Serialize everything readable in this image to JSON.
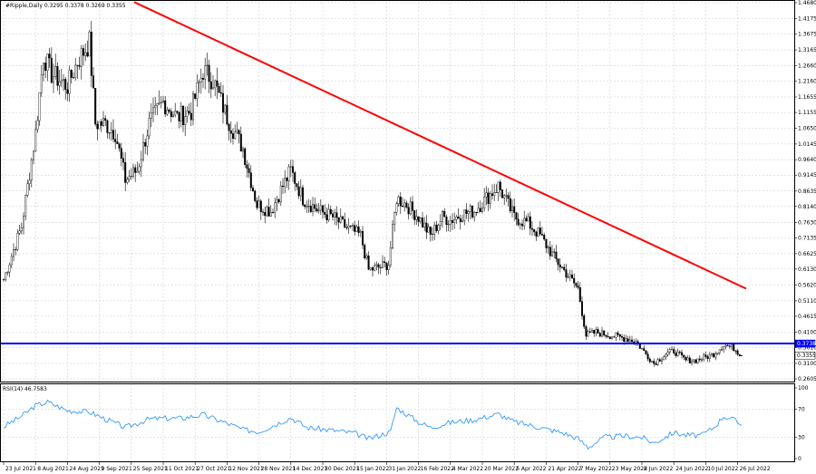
{
  "chart_data": [
    {
      "type": "candlestick",
      "title": "#Ripple,Daily",
      "ohlc_header": "0.3295 0.3378 0.3269 0.3355",
      "ylim": [
        0.2605,
        1.468
      ],
      "y_ticks": [
        "1.4680",
        "1.4175",
        "1.3675",
        "1.3165",
        "1.2660",
        "1.2160",
        "1.1655",
        "1.1155",
        "1.0650",
        "1.0145",
        "0.9640",
        "0.9145",
        "0.8635",
        "0.8140",
        "0.7630",
        "0.7135",
        "0.6625",
        "0.6130",
        "0.5620",
        "0.5110",
        "0.4615",
        "0.4100",
        "0.3610",
        "0.3100",
        "0.2605"
      ],
      "price_labels": [
        {
          "text": "0.3738",
          "value": 0.3738,
          "color": "#0000ff"
        },
        {
          "text": "0.3355",
          "value": 0.3355,
          "color": "#ffffff"
        }
      ],
      "x_tick_labels": [
        "23 Jul 2021",
        "8 Aug 2021",
        "24 Aug 2021",
        "9 Sep 2021",
        "25 Sep 2021",
        "11 Oct 2021",
        "27 Oct 2021",
        "12 Nov 2021",
        "28 Nov 2021",
        "14 Dec 2021",
        "30 Dec 2021",
        "15 Jan 2022",
        "31 Jan 2022",
        "16 Feb 2022",
        "4 Mar 2022",
        "20 Mar 2022",
        "5 Apr 2022",
        "21 Apr 2022",
        "7 May 2022",
        "23 May 2022",
        "8 Jun 2022",
        "24 Jun 2022",
        "10 Jul 2022",
        "26 Jul 2022"
      ],
      "support_line": {
        "value": 0.3738,
        "color": "#0000ff"
      },
      "trendline": {
        "from": {
          "date": "Aug 2021",
          "value": 1.47
        },
        "to": {
          "date": "Aug 2022",
          "value": 0.55
        },
        "color": "#ff0000"
      },
      "closes_anchor_points": [
        {
          "date": "23 Jul 2021",
          "close": 0.58
        },
        {
          "date": "1 Aug 2021",
          "close": 0.75
        },
        {
          "date": "8 Aug 2021",
          "close": 1.05
        },
        {
          "date": "12 Aug 2021",
          "close": 1.3
        },
        {
          "date": "16 Aug 2021",
          "close": 1.24
        },
        {
          "date": "24 Aug 2021",
          "close": 1.2
        },
        {
          "date": "29 Aug 2021",
          "close": 1.28
        },
        {
          "date": "4 Sep 2021",
          "close": 1.34
        },
        {
          "date": "7 Sep 2021",
          "close": 1.08
        },
        {
          "date": "12 Sep 2021",
          "close": 1.08
        },
        {
          "date": "17 Sep 2021",
          "close": 1.05
        },
        {
          "date": "22 Sep 2021",
          "close": 0.9
        },
        {
          "date": "28 Sep 2021",
          "close": 0.93
        },
        {
          "date": "4 Oct 2021",
          "close": 1.08
        },
        {
          "date": "11 Oct 2021",
          "close": 1.15
        },
        {
          "date": "18 Oct 2021",
          "close": 1.1
        },
        {
          "date": "25 Oct 2021",
          "close": 1.12
        },
        {
          "date": "31 Oct 2021",
          "close": 1.25
        },
        {
          "date": "5 Nov 2021",
          "close": 1.22
        },
        {
          "date": "12 Nov 2021",
          "close": 1.1
        },
        {
          "date": "20 Nov 2021",
          "close": 1.0
        },
        {
          "date": "27 Nov 2021",
          "close": 0.82
        },
        {
          "date": "4 Dec 2021",
          "close": 0.8
        },
        {
          "date": "10 Dec 2021",
          "close": 0.88
        },
        {
          "date": "14 Dec 2021",
          "close": 0.93
        },
        {
          "date": "20 Dec 2021",
          "close": 0.84
        },
        {
          "date": "28 Dec 2021",
          "close": 0.8
        },
        {
          "date": "4 Jan 2022",
          "close": 0.78
        },
        {
          "date": "10 Jan 2022",
          "close": 0.75
        },
        {
          "date": "18 Jan 2022",
          "close": 0.72
        },
        {
          "date": "22 Jan 2022",
          "close": 0.61
        },
        {
          "date": "28 Jan 2022",
          "close": 0.62
        },
        {
          "date": "1 Feb 2022",
          "close": 0.63
        },
        {
          "date": "5 Feb 2022",
          "close": 0.84
        },
        {
          "date": "10 Feb 2022",
          "close": 0.82
        },
        {
          "date": "16 Feb 2022",
          "close": 0.78
        },
        {
          "date": "22 Feb 2022",
          "close": 0.72
        },
        {
          "date": "28 Feb 2022",
          "close": 0.78
        },
        {
          "date": "4 Mar 2022",
          "close": 0.77
        },
        {
          "date": "10 Mar 2022",
          "close": 0.79
        },
        {
          "date": "16 Mar 2022",
          "close": 0.8
        },
        {
          "date": "22 Mar 2022",
          "close": 0.84
        },
        {
          "date": "28 Mar 2022",
          "close": 0.88
        },
        {
          "date": "5 Apr 2022",
          "close": 0.78
        },
        {
          "date": "12 Apr 2022",
          "close": 0.76
        },
        {
          "date": "18 Apr 2022",
          "close": 0.72
        },
        {
          "date": "25 Apr 2022",
          "close": 0.65
        },
        {
          "date": "1 May 2022",
          "close": 0.6
        },
        {
          "date": "7 May 2022",
          "close": 0.55
        },
        {
          "date": "11 May 2022",
          "close": 0.4
        },
        {
          "date": "16 May 2022",
          "close": 0.41
        },
        {
          "date": "23 May 2022",
          "close": 0.4
        },
        {
          "date": "31 May 2022",
          "close": 0.39
        },
        {
          "date": "5 Jun 2022",
          "close": 0.38
        },
        {
          "date": "10 Jun 2022",
          "close": 0.34
        },
        {
          "date": "14 Jun 2022",
          "close": 0.31
        },
        {
          "date": "20 Jun 2022",
          "close": 0.34
        },
        {
          "date": "24 Jun 2022",
          "close": 0.35
        },
        {
          "date": "30 Jun 2022",
          "close": 0.32
        },
        {
          "date": "5 Jul 2022",
          "close": 0.32
        },
        {
          "date": "10 Jul 2022",
          "close": 0.33
        },
        {
          "date": "14 Jul 2022",
          "close": 0.34
        },
        {
          "date": "19 Jul 2022",
          "close": 0.37
        },
        {
          "date": "24 Jul 2022",
          "close": 0.36
        },
        {
          "date": "28 Jul 2022",
          "close": 0.3355
        }
      ],
      "bar_color": "#000000",
      "grid": true
    },
    {
      "type": "line",
      "title": "RSI(14) 46.7583",
      "ylim": [
        0,
        100
      ],
      "y_ticks": [
        "100",
        "70",
        "30",
        "0"
      ],
      "levels": [
        70,
        30
      ],
      "color": "#1e90ff",
      "anchor_points": [
        {
          "date": "23 Jul 2021",
          "value": 45
        },
        {
          "date": "1 Aug 2021",
          "value": 60
        },
        {
          "date": "8 Aug 2021",
          "value": 75
        },
        {
          "date": "14 Aug 2021",
          "value": 80
        },
        {
          "date": "24 Aug 2021",
          "value": 68
        },
        {
          "date": "4 Sep 2021",
          "value": 66
        },
        {
          "date": "12 Sep 2021",
          "value": 56
        },
        {
          "date": "22 Sep 2021",
          "value": 44
        },
        {
          "date": "4 Oct 2021",
          "value": 56
        },
        {
          "date": "11 Oct 2021",
          "value": 57
        },
        {
          "date": "20 Oct 2021",
          "value": 57
        },
        {
          "date": "31 Oct 2021",
          "value": 62
        },
        {
          "date": "12 Nov 2021",
          "value": 50
        },
        {
          "date": "20 Nov 2021",
          "value": 41
        },
        {
          "date": "28 Nov 2021",
          "value": 38
        },
        {
          "date": "14 Dec 2021",
          "value": 58
        },
        {
          "date": "22 Dec 2021",
          "value": 44
        },
        {
          "date": "4 Jan 2022",
          "value": 40
        },
        {
          "date": "15 Jan 2022",
          "value": 36
        },
        {
          "date": "22 Jan 2022",
          "value": 28
        },
        {
          "date": "2 Feb 2022",
          "value": 38
        },
        {
          "date": "5 Feb 2022",
          "value": 72
        },
        {
          "date": "16 Feb 2022",
          "value": 52
        },
        {
          "date": "22 Feb 2022",
          "value": 44
        },
        {
          "date": "4 Mar 2022",
          "value": 51
        },
        {
          "date": "16 Mar 2022",
          "value": 55
        },
        {
          "date": "28 Mar 2022",
          "value": 63
        },
        {
          "date": "5 Apr 2022",
          "value": 52
        },
        {
          "date": "18 Apr 2022",
          "value": 44
        },
        {
          "date": "30 Apr 2022",
          "value": 36
        },
        {
          "date": "7 May 2022",
          "value": 28
        },
        {
          "date": "12 May 2022",
          "value": 16
        },
        {
          "date": "20 May 2022",
          "value": 30
        },
        {
          "date": "31 May 2022",
          "value": 32
        },
        {
          "date": "8 Jun 2022",
          "value": 30
        },
        {
          "date": "14 Jun 2022",
          "value": 22
        },
        {
          "date": "24 Jun 2022",
          "value": 37
        },
        {
          "date": "30 Jun 2022",
          "value": 33
        },
        {
          "date": "8 Jul 2022",
          "value": 33
        },
        {
          "date": "14 Jul 2022",
          "value": 44
        },
        {
          "date": "19 Jul 2022",
          "value": 60
        },
        {
          "date": "24 Jul 2022",
          "value": 55
        },
        {
          "date": "28 Jul 2022",
          "value": 46.7583
        }
      ]
    }
  ]
}
